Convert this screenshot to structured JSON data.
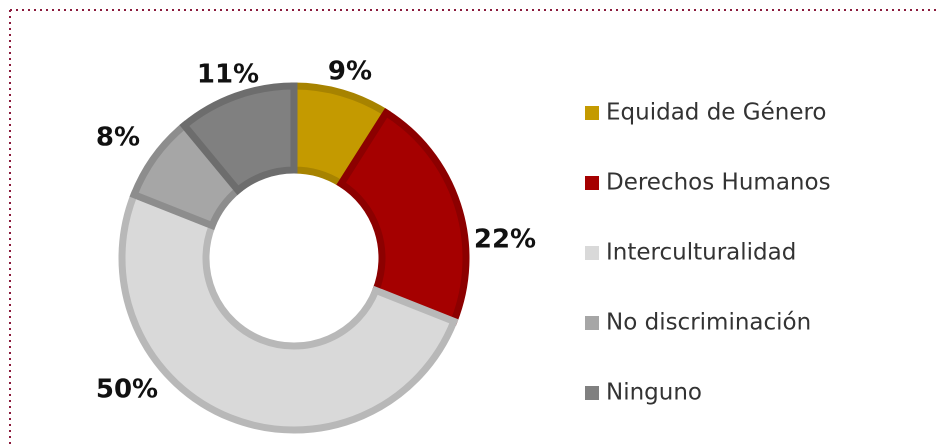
{
  "chart_data": {
    "type": "donut",
    "categories": [
      "Equidad de Género",
      "Derechos Humanos",
      "Interculturalidad",
      "No discriminación",
      "Ninguno"
    ],
    "values": [
      9,
      22,
      50,
      8,
      11
    ],
    "value_labels": [
      "9%",
      "22%",
      "50%",
      "8%",
      "11%"
    ],
    "colors": [
      "#c49a00",
      "#a50000",
      "#d9d9d9",
      "#a6a6a6",
      "#808080"
    ],
    "legend": "right"
  }
}
